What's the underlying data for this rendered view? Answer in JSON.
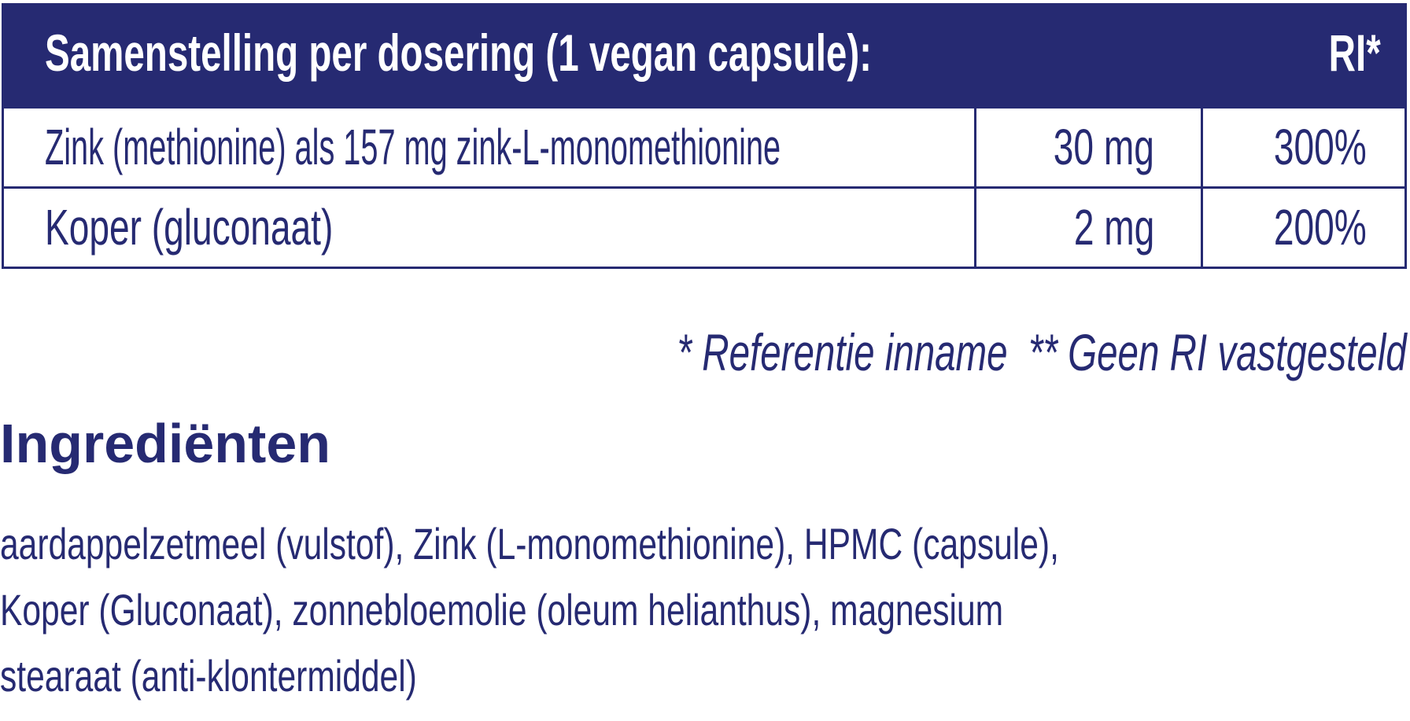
{
  "table": {
    "header": {
      "title": "Samenstelling per dosering (1 vegan capsule):",
      "ri": "RI*"
    },
    "rows": [
      {
        "name": "Zink (methionine) als 157 mg zink-L-monomethionine",
        "amount": "30 mg",
        "ri": "300%"
      },
      {
        "name": "Koper (gluconaat)",
        "amount": "2 mg",
        "ri": "200%"
      }
    ]
  },
  "footnote": "* Referentie inname  ** Geen RI vastgesteld",
  "ingredients": {
    "title": "Ingrediënten",
    "lines": [
      "aardappelzetmeel (vulstof), Zink (L-monomethionine), HPMC (capsule),",
      "Koper (Gluconaat), zonnebloemolie (oleum helianthus), magnesium",
      "stearaat (anti-klontermiddel)"
    ]
  },
  "colors": {
    "brand": "#262a72",
    "background": "#ffffff"
  }
}
